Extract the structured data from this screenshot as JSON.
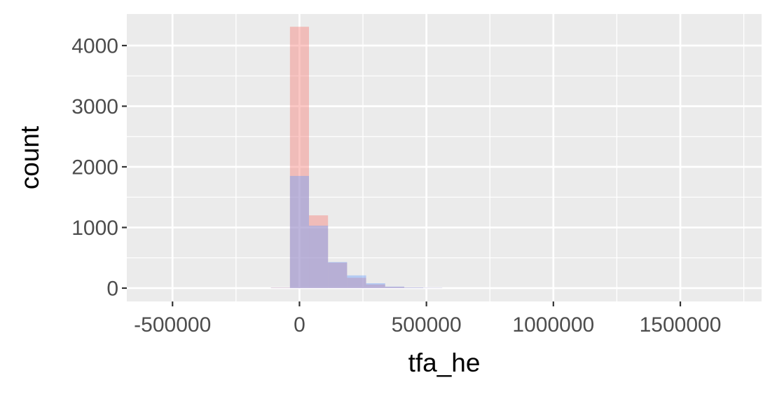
{
  "chart_data": {
    "type": "bar",
    "title": "",
    "xlabel": "tfa_he",
    "ylabel": "count",
    "xlim": [
      -680000,
      1820000
    ],
    "ylim": [
      -220,
      4520
    ],
    "x_ticks": [
      -500000,
      0,
      500000,
      1000000,
      1500000
    ],
    "x_tick_labels": [
      "-500000",
      "0",
      "500000",
      "1000000",
      "1500000"
    ],
    "x_minor_ticks": [
      -250000,
      250000,
      750000,
      1250000,
      1750000
    ],
    "y_ticks": [
      0,
      1000,
      2000,
      3000,
      4000
    ],
    "y_tick_labels": [
      "0",
      "1000",
      "2000",
      "3000",
      "4000"
    ],
    "y_minor_ticks": [
      500,
      1500,
      2500,
      3500
    ],
    "grid": true,
    "legend": "none",
    "background": "#ebebeb",
    "grid_color": "#ffffff",
    "bin_width": 75000,
    "series": [
      {
        "color": "#f8766d",
        "opacity": 0.4,
        "bins": [
          {
            "x0": -112500,
            "x1": -37500,
            "count": 8
          },
          {
            "x0": -37500,
            "x1": 37500,
            "count": 4310
          },
          {
            "x0": 37500,
            "x1": 112500,
            "count": 1200
          },
          {
            "x0": 112500,
            "x1": 187500,
            "count": 420
          },
          {
            "x0": 187500,
            "x1": 262500,
            "count": 170
          },
          {
            "x0": 262500,
            "x1": 337500,
            "count": 60
          },
          {
            "x0": 337500,
            "x1": 412500,
            "count": 20
          },
          {
            "x0": 412500,
            "x1": 487500,
            "count": 8
          },
          {
            "x0": 487500,
            "x1": 562500,
            "count": 3
          }
        ]
      },
      {
        "color": "#619cff",
        "opacity": 0.4,
        "bins": [
          {
            "x0": -112500,
            "x1": -37500,
            "count": 5
          },
          {
            "x0": -37500,
            "x1": 37500,
            "count": 1850
          },
          {
            "x0": 37500,
            "x1": 112500,
            "count": 1030
          },
          {
            "x0": 112500,
            "x1": 187500,
            "count": 430
          },
          {
            "x0": 187500,
            "x1": 262500,
            "count": 210
          },
          {
            "x0": 262500,
            "x1": 337500,
            "count": 80
          },
          {
            "x0": 337500,
            "x1": 412500,
            "count": 25
          },
          {
            "x0": 412500,
            "x1": 487500,
            "count": 10
          },
          {
            "x0": 487500,
            "x1": 562500,
            "count": 4
          }
        ]
      }
    ]
  }
}
